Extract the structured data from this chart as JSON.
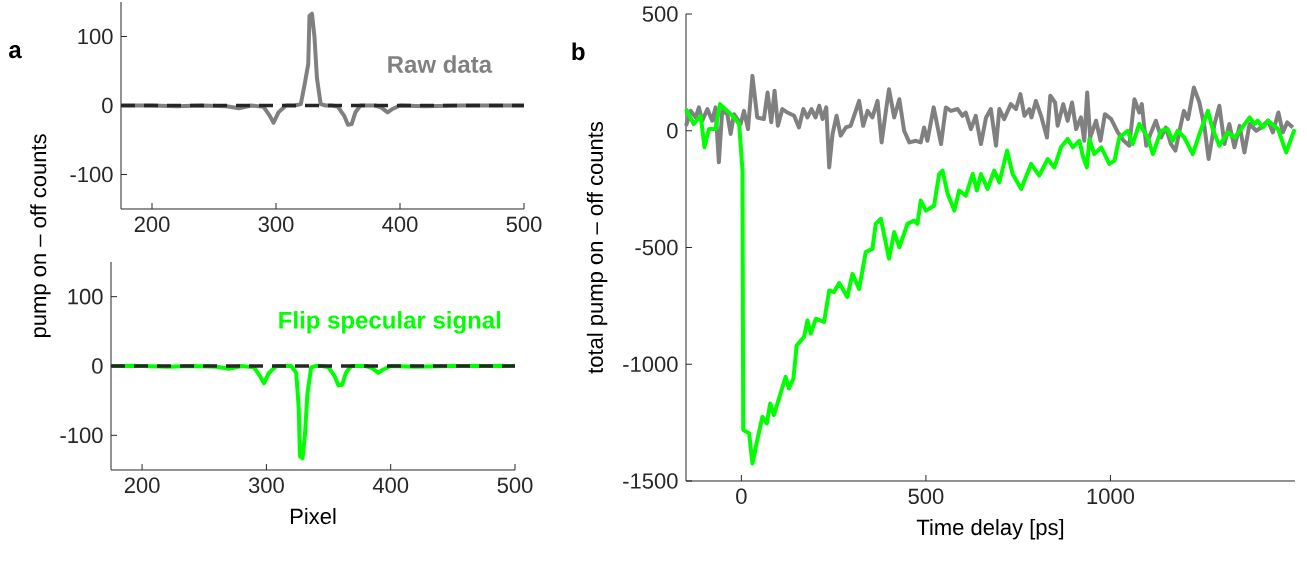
{
  "chart_data": [
    {
      "type": "line",
      "ylabel": "pump on – off counts",
      "annotations": [
        "a"
      ],
      "xlim": [
        175,
        500
      ],
      "ylim": [
        -150,
        150
      ],
      "xticks": [
        200,
        300,
        400,
        500
      ],
      "yticks": [
        -100,
        0,
        100
      ],
      "ref_lines": [
        {
          "axis": "y",
          "value": 0,
          "color": "#262626",
          "line_style": "dashed"
        }
      ],
      "series": [
        {
          "name": "Raw data",
          "color": "#808080",
          "x": [
            175,
            200,
            220,
            240,
            260,
            270,
            280,
            290,
            295,
            298,
            302,
            308,
            315,
            320,
            323,
            326,
            327,
            329,
            331,
            333,
            336,
            340,
            345,
            350,
            355,
            358,
            361,
            364,
            368,
            380,
            385,
            390,
            394,
            400,
            420,
            450,
            480,
            500
          ],
          "values": [
            0,
            0,
            -1,
            0,
            -1,
            -4,
            0,
            -2,
            -15,
            -25,
            -10,
            0,
            0,
            2,
            30,
            60,
            130,
            133,
            100,
            40,
            2,
            0,
            0,
            -2,
            -15,
            -28,
            -27,
            -10,
            0,
            0,
            -3,
            -10,
            -5,
            0,
            -1,
            0,
            0,
            0
          ]
        }
      ]
    },
    {
      "type": "line",
      "xlabel": "Pixel",
      "xlim": [
        175,
        500
      ],
      "ylim": [
        -150,
        150
      ],
      "xticks": [
        200,
        300,
        400,
        500
      ],
      "yticks": [
        -100,
        0,
        100
      ],
      "ref_lines": [
        {
          "axis": "y",
          "value": 0,
          "color": "#262626",
          "line_style": "dashed"
        }
      ],
      "series": [
        {
          "name": "Flip specular signal",
          "color": "#00ff00",
          "x": [
            175,
            200,
            220,
            240,
            260,
            270,
            280,
            290,
            295,
            298,
            302,
            308,
            315,
            320,
            324,
            326,
            327,
            329,
            331,
            333,
            336,
            340,
            345,
            350,
            355,
            358,
            361,
            364,
            368,
            380,
            385,
            390,
            394,
            400,
            420,
            450,
            480,
            500
          ],
          "values": [
            0,
            0,
            -1,
            0,
            -1,
            -4,
            0,
            -2,
            -15,
            -25,
            -10,
            0,
            0,
            0,
            -10,
            -60,
            -130,
            -133,
            -100,
            -40,
            -2,
            0,
            0,
            -2,
            -15,
            -28,
            -27,
            -10,
            0,
            0,
            -3,
            -10,
            -5,
            0,
            -1,
            0,
            0,
            0
          ]
        }
      ]
    },
    {
      "type": "line",
      "xlabel": "Time delay [ps]",
      "ylabel": "total pump on – off counts",
      "annotations": [
        "b"
      ],
      "xlim": [
        -150,
        1500
      ],
      "ylim": [
        -1500,
        500
      ],
      "xticks": [
        0,
        500,
        1000
      ],
      "yticks": [
        -1500,
        -1000,
        -500,
        0,
        500
      ],
      "series": [
        {
          "color": "#808080",
          "x": [
            -150,
            -137,
            -124,
            -115,
            -106,
            -92,
            -79,
            -70,
            -61,
            -52,
            -38,
            -29,
            -20,
            -2,
            7,
            18,
            30,
            43,
            61,
            71,
            81,
            90,
            99,
            111,
            125,
            143,
            156,
            168,
            179,
            190,
            201,
            211,
            220,
            230,
            238,
            247,
            258,
            269,
            283,
            296,
            310,
            319,
            330,
            342,
            355,
            369,
            380,
            391,
            400,
            414,
            428,
            441,
            455,
            473,
            486,
            495,
            504,
            521,
            532,
            541,
            554,
            568,
            586,
            599,
            608,
            622,
            635,
            649,
            663,
            676,
            690,
            699,
            712,
            730,
            744,
            756,
            767,
            780,
            786,
            798,
            812,
            828,
            837,
            850,
            857,
            872,
            884,
            896,
            907,
            920,
            929,
            937,
            945,
            961,
            973,
            985,
            1002,
            1020,
            1036,
            1051,
            1065,
            1078,
            1085,
            1097,
            1110,
            1123,
            1137,
            1150,
            1164,
            1176,
            1190,
            1199,
            1210,
            1226,
            1241,
            1255,
            1266,
            1282,
            1295,
            1309,
            1322,
            1336,
            1350,
            1363,
            1377,
            1395,
            1408,
            1427,
            1440,
            1455,
            1467,
            1479,
            1494
          ],
          "values": [
            21,
            85,
            57,
            100,
            43,
            93,
            43,
            100,
            -135,
            85,
            71,
            -14,
            71,
            29,
            85,
            7,
            235,
            57,
            50,
            164,
            36,
            171,
            21,
            93,
            78,
            64,
            14,
            93,
            57,
            93,
            57,
            107,
            50,
            100,
            -157,
            -14,
            64,
            -21,
            14,
            21,
            85,
            128,
            21,
            85,
            57,
            128,
            -50,
            78,
            178,
            57,
            135,
            0,
            -50,
            -43,
            -50,
            14,
            -43,
            100,
            14,
            -57,
            100,
            85,
            93,
            64,
            78,
            7,
            64,
            -57,
            57,
            93,
            -64,
            93,
            50,
            114,
            93,
            157,
            64,
            93,
            57,
            128,
            64,
            -29,
            150,
            121,
            21,
            114,
            43,
            121,
            7,
            57,
            -43,
            164,
            -29,
            43,
            -43,
            71,
            50,
            -7,
            -43,
            -64,
            135,
            78,
            114,
            -64,
            -7,
            43,
            -29,
            14,
            -57,
            -85,
            21,
            85,
            50,
            185,
            121,
            14,
            -121,
            29,
            107,
            -57,
            29,
            -71,
            21,
            -93,
            29,
            0,
            14,
            43,
            -7,
            78,
            -7,
            36,
            14
          ]
        },
        {
          "color": "#00ff00",
          "x": [
            -150,
            -129,
            -110,
            -100,
            -88,
            -70,
            -58,
            -38,
            -20,
            -6,
            3,
            5,
            21,
            30,
            43,
            57,
            69,
            78,
            88,
            120,
            129,
            141,
            150,
            170,
            179,
            188,
            202,
            224,
            238,
            251,
            265,
            287,
            301,
            319,
            337,
            355,
            364,
            378,
            400,
            414,
            428,
            450,
            468,
            477,
            486,
            500,
            522,
            536,
            545,
            559,
            577,
            590,
            608,
            627,
            638,
            649,
            667,
            685,
            699,
            720,
            735,
            758,
            785,
            807,
            830,
            848,
            866,
            884,
            898,
            916,
            925,
            936,
            943,
            956,
            975,
            997,
            1011,
            1024,
            1047,
            1060,
            1078,
            1101,
            1115,
            1137,
            1155,
            1169,
            1182,
            1200,
            1223,
            1241,
            1264,
            1277,
            1295,
            1318,
            1336,
            1354,
            1377,
            1390,
            1399,
            1413,
            1427,
            1454,
            1476,
            1499
          ],
          "values": [
            93,
            29,
            64,
            -71,
            7,
            7,
            114,
            85,
            57,
            29,
            -171,
            -1282,
            -1296,
            -1425,
            -1325,
            -1225,
            -1253,
            -1168,
            -1218,
            -1054,
            -1104,
            -1061,
            -919,
            -883,
            -812,
            -869,
            -805,
            -819,
            -684,
            -691,
            -652,
            -712,
            -613,
            -677,
            -520,
            -506,
            -399,
            -377,
            -548,
            -434,
            -499,
            -399,
            -385,
            -399,
            -299,
            -342,
            -321,
            -185,
            -171,
            -271,
            -342,
            -256,
            -278,
            -185,
            -256,
            -185,
            -249,
            -171,
            -221,
            -85,
            -185,
            -249,
            -142,
            -192,
            -121,
            -157,
            -71,
            -35,
            -71,
            -43,
            -107,
            -157,
            -35,
            -100,
            -71,
            -142,
            -128,
            -29,
            0,
            -57,
            29,
            -29,
            -100,
            0,
            7,
            -43,
            0,
            -29,
            -100,
            -14,
            85,
            7,
            -64,
            -7,
            -29,
            7,
            57,
            29,
            43,
            14,
            43,
            7,
            -93,
            7
          ]
        }
      ]
    }
  ]
}
